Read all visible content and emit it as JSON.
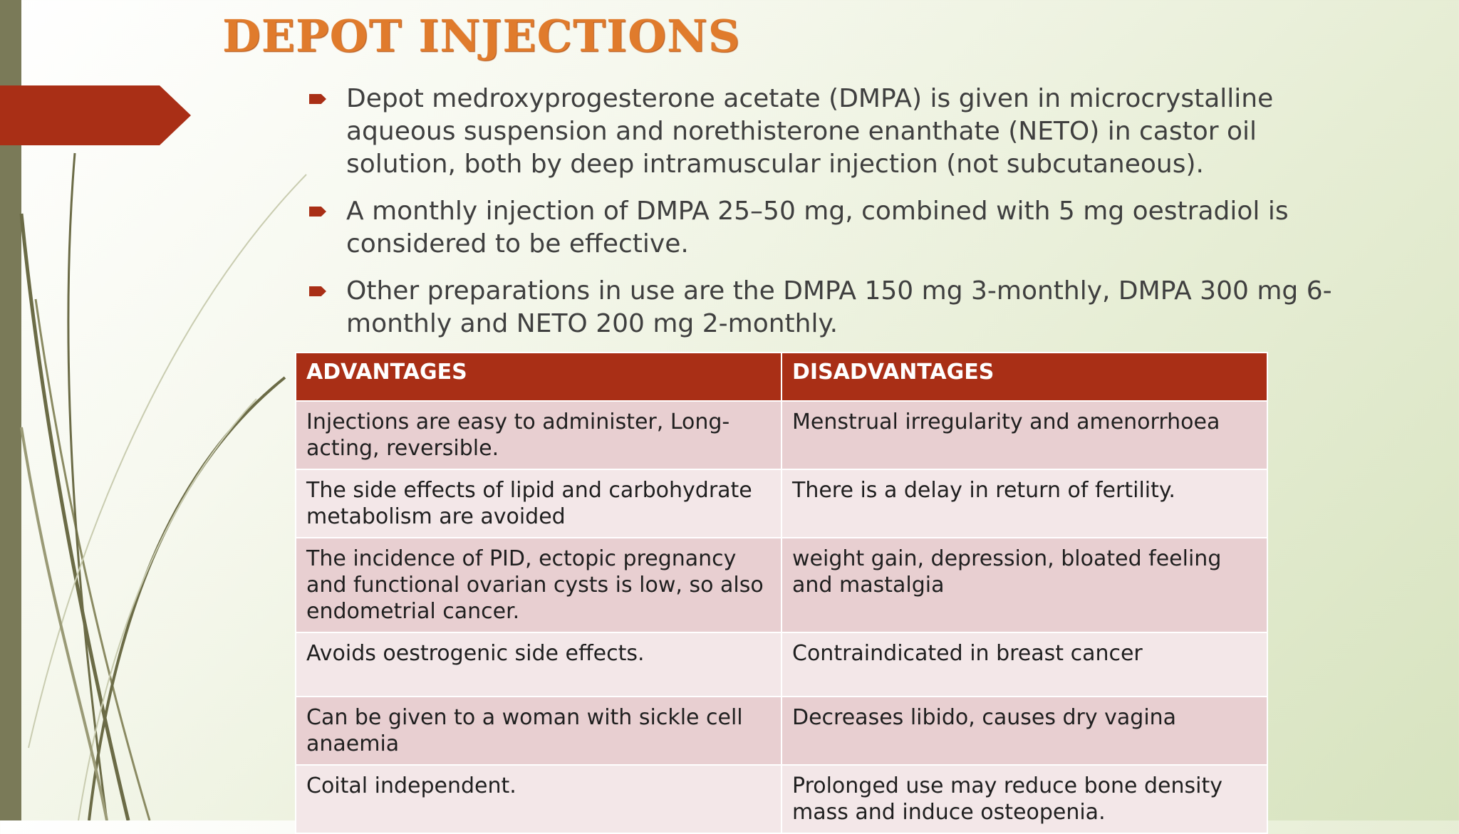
{
  "title": "DEPOT INJECTIONS",
  "bullets": [
    "Depot medroxyprogesterone acetate (DMPA) is given in microcrystalline aqueous suspension and norethisterone enanthate (NETO) in castor oil solution, both by deep intramuscular injection (not subcutaneous).",
    "A monthly injection of DMPA 25–50 mg, combined with 5 mg oestradiol is considered to be effective.",
    "Other preparations in use are the DMPA 150 mg 3-monthly, DMPA 300 mg 6-monthly and NETO 200 mg 2-monthly."
  ],
  "table": {
    "headers": [
      "ADVANTAGES",
      "DISADVANTAGES"
    ],
    "rows": [
      [
        "Injections are easy to administer, Long-acting, reversible.",
        "Menstrual irregularity and amenorrhoea"
      ],
      [
        "The side effects of lipid and carbohydrate metabolism are avoided",
        "There is a delay in return of fertility."
      ],
      [
        "The incidence of PID, ectopic pregnancy and functional ovarian cysts is low, so also endometrial cancer.",
        "weight gain, depression, bloated feeling and mastalgia"
      ],
      [
        "Avoids oestrogenic side effects.",
        "Contraindicated in breast cancer"
      ],
      [
        "Can be given to a woman with sickle cell anaemia",
        "Decreases libido, causes dry vagina"
      ],
      [
        "Coital independent.",
        "Prolonged use may reduce bone density mass and induce osteopenia."
      ]
    ]
  },
  "colors": {
    "accent_red": "#a92f16",
    "title_orange": "#e07b2c",
    "stem_olive": "#7a7a58"
  }
}
